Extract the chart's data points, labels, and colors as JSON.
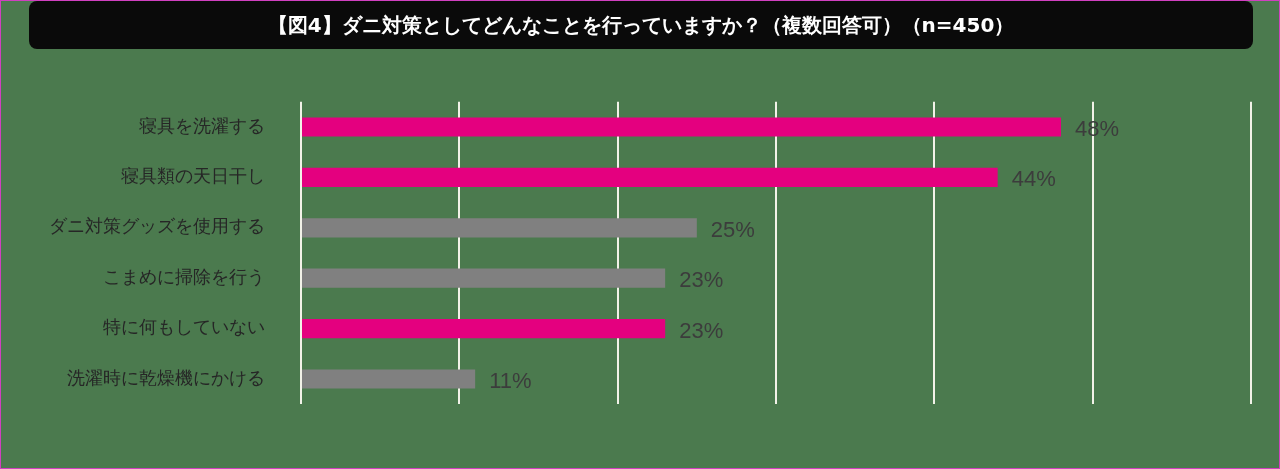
{
  "chart_data": {
    "type": "bar",
    "orientation": "horizontal",
    "title": "【図4】ダニ対策としてどんなことを行っていますか？（複数回答可）（n=450）",
    "categories": [
      "寝具を洗濯する",
      "寝具類の天日干し",
      "ダニ対策グッズを使用する",
      "こまめに掃除を行う",
      "特に何もしていない",
      "洗濯時に乾燥機にかける"
    ],
    "values": [
      48,
      44,
      25,
      23,
      23,
      11
    ],
    "colors": [
      "#e4007f",
      "#e4007f",
      "#808080",
      "#808080",
      "#e4007f",
      "#808080"
    ],
    "value_labels": [
      "48%",
      "44%",
      "25%",
      "23%",
      "23%",
      "11%"
    ],
    "xlim": [
      0,
      60
    ],
    "xticks": [
      {
        "value": 0,
        "label": null
      },
      {
        "value": 10,
        "label": null
      },
      {
        "value": 20,
        "label": null
      },
      {
        "value": 30,
        "label": null
      },
      {
        "value": 40,
        "label": null
      },
      {
        "value": 50,
        "label": null
      },
      {
        "value": 60,
        "label": null
      }
    ],
    "tick_labels": "y",
    "grid": "x",
    "legend": false
  }
}
